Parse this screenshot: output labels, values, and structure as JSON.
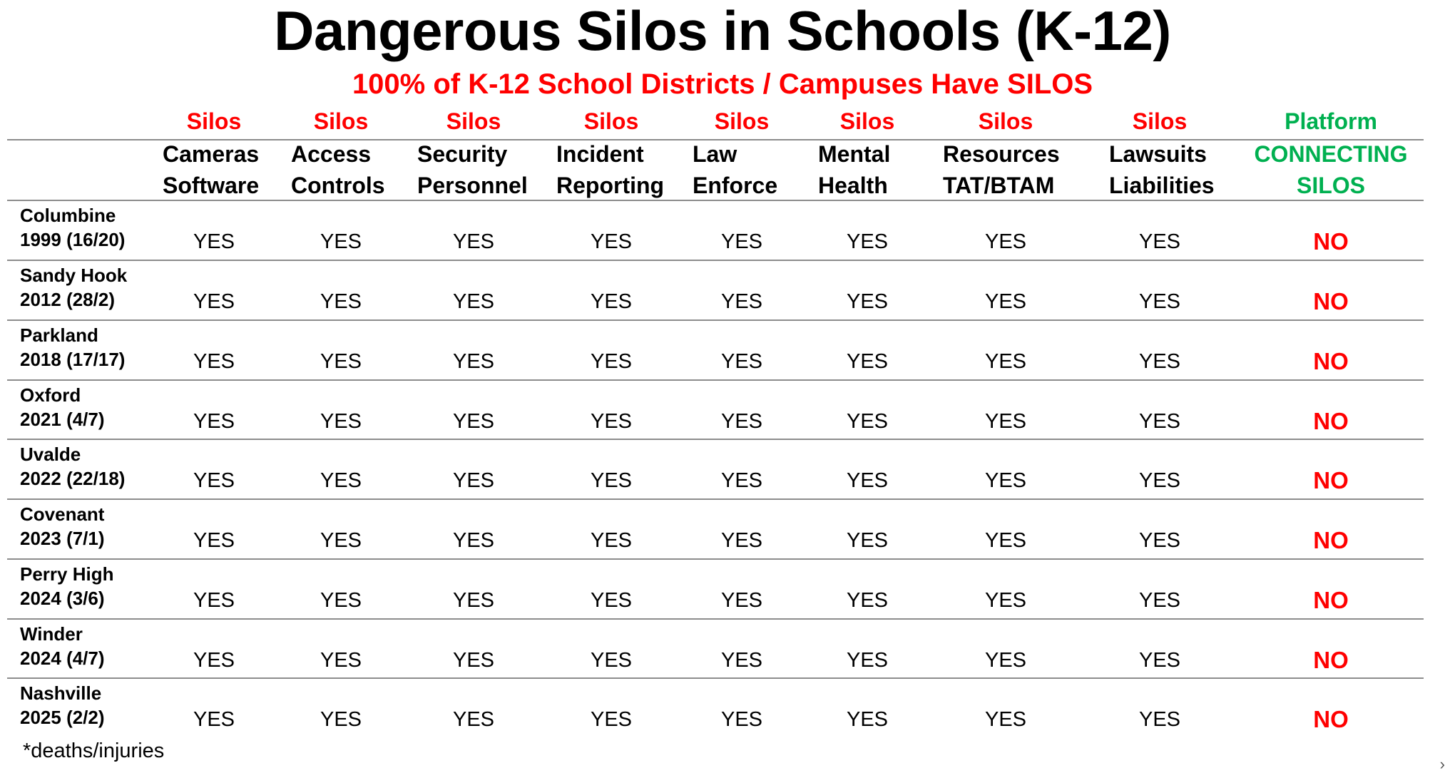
{
  "title": "Dangerous Silos in Schools (K-12)",
  "subtitle": "100% of K-12 School Districts / Campuses Have SILOS",
  "columns": [
    {
      "top": "Silos",
      "line1": "Cameras",
      "line2": "Software"
    },
    {
      "top": "Silos",
      "line1": "Access",
      "line2": "Controls"
    },
    {
      "top": "Silos",
      "line1": "Security",
      "line2": "Personnel"
    },
    {
      "top": "Silos",
      "line1": "Incident",
      "line2": "Reporting"
    },
    {
      "top": "Silos",
      "line1": "Law",
      "line2": "Enforce"
    },
    {
      "top": "Silos",
      "line1": "Mental",
      "line2": "Health"
    },
    {
      "top": "Silos",
      "line1": "Resources",
      "line2": "TAT/BTAM"
    },
    {
      "top": "Silos",
      "line1": "Lawsuits",
      "line2": "Liabilities"
    },
    {
      "top": "Platform",
      "line1": "CONNECTING",
      "line2": "SILOS"
    }
  ],
  "rows": [
    {
      "name": "Columbine",
      "detail": "1999 (16/20)",
      "values": [
        "YES",
        "YES",
        "YES",
        "YES",
        "YES",
        "YES",
        "YES",
        "YES",
        "NO"
      ]
    },
    {
      "name": "Sandy Hook",
      "detail": "2012 (28/2)",
      "values": [
        "YES",
        "YES",
        "YES",
        "YES",
        "YES",
        "YES",
        "YES",
        "YES",
        "NO"
      ]
    },
    {
      "name": "Parkland",
      "detail": "2018 (17/17)",
      "values": [
        "YES",
        "YES",
        "YES",
        "YES",
        "YES",
        "YES",
        "YES",
        "YES",
        "NO"
      ]
    },
    {
      "name": "Oxford",
      "detail": "2021 (4/7)",
      "values": [
        "YES",
        "YES",
        "YES",
        "YES",
        "YES",
        "YES",
        "YES",
        "YES",
        "NO"
      ]
    },
    {
      "name": "Uvalde",
      "detail": "2022 (22/18)",
      "values": [
        "YES",
        "YES",
        "YES",
        "YES",
        "YES",
        "YES",
        "YES",
        "YES",
        "NO"
      ]
    },
    {
      "name": "Covenant",
      "detail": "2023 (7/1)",
      "values": [
        "YES",
        "YES",
        "YES",
        "YES",
        "YES",
        "YES",
        "YES",
        "YES",
        "NO"
      ]
    },
    {
      "name": "Perry High",
      "detail": "2024 (3/6)",
      "values": [
        "YES",
        "YES",
        "YES",
        "YES",
        "YES",
        "YES",
        "YES",
        "YES",
        "NO"
      ]
    },
    {
      "name": "Winder",
      "detail": "2024 (4/7)",
      "values": [
        "YES",
        "YES",
        "YES",
        "YES",
        "YES",
        "YES",
        "YES",
        "YES",
        "NO"
      ]
    },
    {
      "name": "Nashville",
      "detail": "2025 (2/2)",
      "values": [
        "YES",
        "YES",
        "YES",
        "YES",
        "YES",
        "YES",
        "YES",
        "YES",
        "NO"
      ]
    }
  ],
  "footnote": "*deaths/injuries",
  "edge_mark": "›",
  "colors": {
    "silo_red": "#ff0000",
    "platform_green": "#00b050",
    "rule_gray": "#8c8c8c"
  }
}
